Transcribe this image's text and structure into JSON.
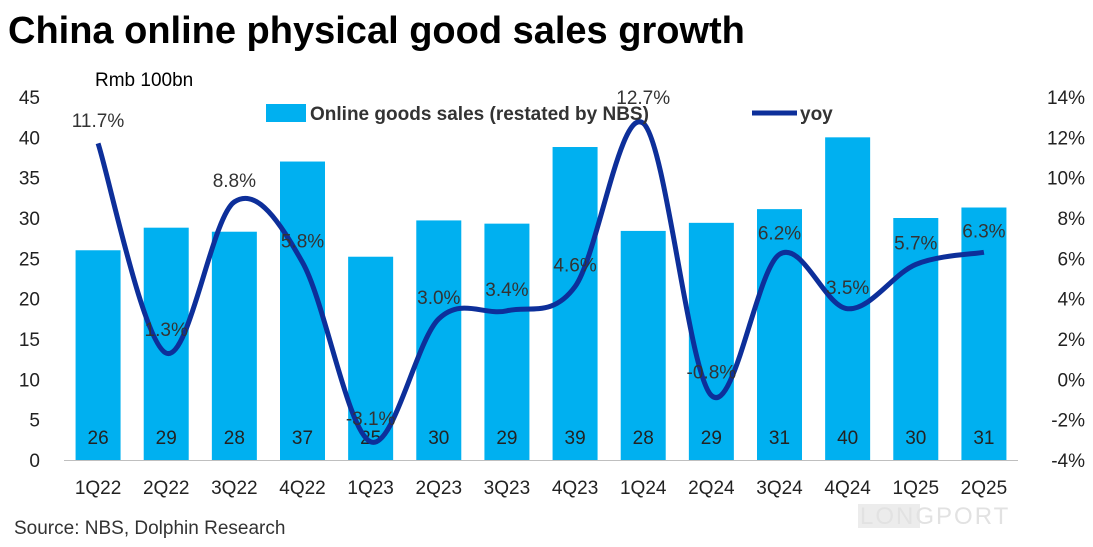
{
  "title": "China online physical good sales growth",
  "unit_label": "Rmb 100bn",
  "source": "Source: NBS, Dolphin Research",
  "watermark": "LONGPORT",
  "colors": {
    "bar": "#00b0f0",
    "line": "#0d2f9a"
  },
  "chart_data": {
    "type": "bar",
    "categories": [
      "1Q22",
      "2Q22",
      "3Q22",
      "4Q22",
      "1Q23",
      "2Q23",
      "3Q23",
      "4Q23",
      "1Q24",
      "2Q24",
      "3Q24",
      "4Q24",
      "1Q25",
      "2Q25"
    ],
    "series": [
      {
        "name": "Online goods sales (restated by NBS)",
        "type": "bar",
        "axis": "left",
        "values": [
          26,
          28.8,
          28.3,
          37,
          25.2,
          29.7,
          29.3,
          38.8,
          28.4,
          29.4,
          31.1,
          40,
          30,
          31.3
        ],
        "data_labels": [
          "26",
          "29",
          "28",
          "37",
          "25",
          "30",
          "29",
          "39",
          "28",
          "29",
          "31",
          "40",
          "30",
          "31"
        ]
      },
      {
        "name": "yoy",
        "type": "line",
        "axis": "right",
        "values": [
          11.7,
          1.3,
          8.8,
          5.8,
          -3.1,
          3.0,
          3.4,
          4.6,
          12.7,
          -0.8,
          6.2,
          3.5,
          5.7,
          6.3
        ],
        "data_labels": [
          "11.7%",
          "1.3%",
          "8.8%",
          "5.8%",
          "-3.1%",
          "3.0%",
          "3.4%",
          "4.6%",
          "12.7%",
          "-0.8%",
          "6.2%",
          "3.5%",
          "5.7%",
          "6.3%"
        ]
      }
    ],
    "left_axis": {
      "ylim": [
        0,
        45
      ],
      "ticks": [
        "0",
        "5",
        "10",
        "15",
        "20",
        "25",
        "30",
        "35",
        "40",
        "45"
      ]
    },
    "right_axis": {
      "ylim": [
        -4,
        14
      ],
      "ticks": [
        "-4%",
        "-2%",
        "0%",
        "2%",
        "4%",
        "6%",
        "8%",
        "10%",
        "12%",
        "14%"
      ]
    },
    "legend_position": "top",
    "grid": false
  }
}
